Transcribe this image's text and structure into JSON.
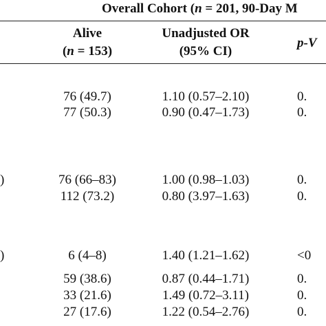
{
  "table": {
    "title": "Overall Cohort (n = 201, 90-Day M",
    "headers": {
      "alive_line1": "Alive",
      "alive_line2": "(n = 153)",
      "or_line1": "Unadjusted OR",
      "or_line2": "(95% CI)",
      "p": "p-V"
    },
    "fragments": {
      "left1": ")",
      "left2": ")"
    },
    "rows": [
      {
        "alive": "76 (49.7)",
        "or": "1.10 (0.57–2.10)",
        "p": "0."
      },
      {
        "alive": "77 (50.3)",
        "or": "0.90 (0.47–1.73)",
        "p": "0."
      },
      {
        "alive": "76 (66–83)",
        "or": "1.00 (0.98–1.03)",
        "p": "0."
      },
      {
        "alive": "112 (73.2)",
        "or": "0.80 (3.97–1.63)",
        "p": "0."
      },
      {
        "alive": "6 (4–8)",
        "or": "1.40 (1.21–1.62)",
        "p": "<0"
      },
      {
        "alive": "59 (38.6)",
        "or": "0.87 (0.44–1.71)",
        "p": "0."
      },
      {
        "alive": "33 (21.6)",
        "or": "1.49 (0.72–3.11)",
        "p": "0."
      },
      {
        "alive": "27 (17.6)",
        "or": "1.22 (0.54–2.76)",
        "p": "0."
      }
    ]
  }
}
